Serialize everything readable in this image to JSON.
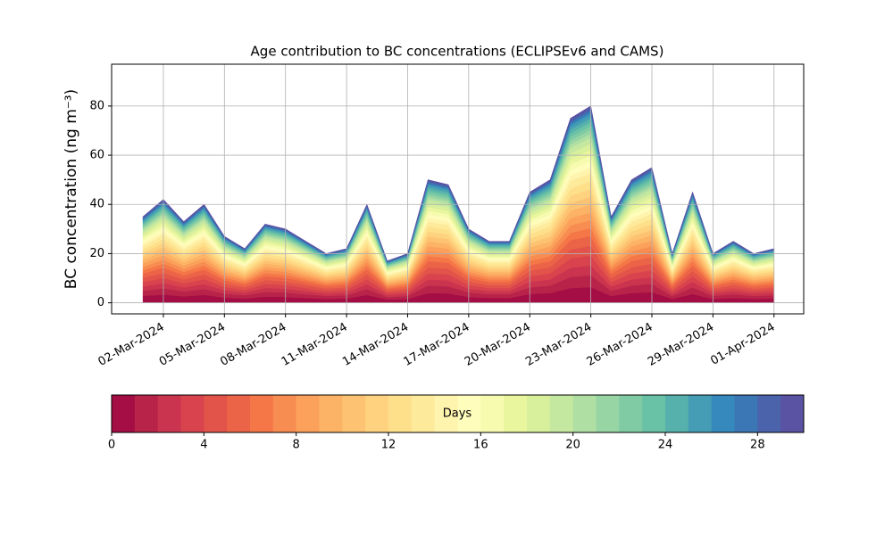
{
  "chart_data": {
    "type": "stacked_area",
    "title": "Age contribution to BC concentrations (ECLIPSEv6 and CAMS)",
    "y_label": "BC concentration (ng m⁻³)",
    "x": [
      "2024-03-01",
      "2024-03-02",
      "2024-03-03",
      "2024-03-04",
      "2024-03-05",
      "2024-03-06",
      "2024-03-07",
      "2024-03-08",
      "2024-03-09",
      "2024-03-10",
      "2024-03-11",
      "2024-03-12",
      "2024-03-13",
      "2024-03-14",
      "2024-03-15",
      "2024-03-16",
      "2024-03-17",
      "2024-03-18",
      "2024-03-19",
      "2024-03-20",
      "2024-03-21",
      "2024-03-22",
      "2024-03-23",
      "2024-03-24",
      "2024-03-25",
      "2024-03-26",
      "2024-03-27",
      "2024-03-28",
      "2024-03-29",
      "2024-03-30",
      "2024-03-31",
      "2024-04-01"
    ],
    "xlim": [
      "2024-02-28T11:00",
      "2024-04-02T11:00"
    ],
    "xticks": [
      {
        "value": "2024-03-02",
        "label": "02-Mar-2024"
      },
      {
        "value": "2024-03-05",
        "label": "05-Mar-2024"
      },
      {
        "value": "2024-03-08",
        "label": "08-Mar-2024"
      },
      {
        "value": "2024-03-11",
        "label": "11-Mar-2024"
      },
      {
        "value": "2024-03-14",
        "label": "14-Mar-2024"
      },
      {
        "value": "2024-03-17",
        "label": "17-Mar-2024"
      },
      {
        "value": "2024-03-20",
        "label": "20-Mar-2024"
      },
      {
        "value": "2024-03-23",
        "label": "23-Mar-2024"
      },
      {
        "value": "2024-03-26",
        "label": "26-Mar-2024"
      },
      {
        "value": "2024-03-29",
        "label": "29-Mar-2024"
      },
      {
        "value": "2024-04-01",
        "label": "01-Apr-2024"
      }
    ],
    "ylim": [
      -4.5,
      97
    ],
    "yticks": [
      0,
      20,
      40,
      60,
      80
    ],
    "grid": true,
    "series": [
      {
        "color": "#a50d45",
        "values": [
          2.8,
          3.36,
          2.64,
          3.2,
          2.16,
          1.76,
          2.56,
          2.4,
          2,
          1.6,
          1.76,
          3.2,
          1.36,
          1.6,
          4,
          3.84,
          2.4,
          2,
          2,
          3.6,
          4,
          6,
          6.4,
          2.8,
          4,
          4.4,
          1.6,
          3.6,
          1.6,
          2,
          1.6,
          1.76
        ]
      },
      {
        "color": "#b8234a",
        "values": [
          2.1,
          2.52,
          1.98,
          2.4,
          1.62,
          1.32,
          1.92,
          1.8,
          1.5,
          1.2,
          1.32,
          2.4,
          1.02,
          1.2,
          3,
          2.88,
          1.8,
          1.5,
          1.5,
          2.7,
          3,
          4.5,
          4.8,
          2.1,
          3,
          3.3,
          1.2,
          2.7,
          1.2,
          1.5,
          1.2,
          1.32
        ]
      },
      {
        "color": "#ca344e",
        "values": [
          1.75,
          2.1,
          1.65,
          2,
          1.35,
          1.1,
          1.6,
          1.5,
          1.25,
          1,
          1.1,
          2,
          0.85,
          1,
          2.5,
          2.4,
          1.5,
          1.25,
          1.25,
          2.25,
          2.5,
          3.75,
          4,
          1.75,
          2.5,
          2.75,
          1,
          2.25,
          1,
          1.25,
          1,
          1.1
        ]
      },
      {
        "color": "#d8434e",
        "values": [
          1.75,
          2.1,
          1.65,
          2,
          1.35,
          1.1,
          1.6,
          1.5,
          1.25,
          1,
          1.1,
          2,
          0.85,
          1,
          2.5,
          2.4,
          1.5,
          1.25,
          1.25,
          2.25,
          2.5,
          3.75,
          4,
          1.75,
          2.5,
          2.75,
          1,
          2.25,
          1,
          1.25,
          1,
          1.1
        ]
      },
      {
        "color": "#e2534a",
        "values": [
          1.75,
          2.1,
          1.65,
          2,
          1.35,
          1.1,
          1.6,
          1.5,
          1.25,
          1,
          1.1,
          2,
          0.85,
          1,
          2.5,
          2.4,
          1.5,
          1.25,
          1.25,
          2.25,
          2.5,
          3.75,
          4,
          1.75,
          2.5,
          2.75,
          1,
          2.25,
          1,
          1.25,
          1,
          1.1
        ]
      },
      {
        "color": "#ec6447",
        "values": [
          1.75,
          2.1,
          1.65,
          2,
          1.35,
          1.1,
          1.6,
          1.5,
          1.25,
          1,
          1.1,
          2,
          0.85,
          1,
          2.5,
          2.4,
          1.5,
          1.25,
          1.25,
          2.25,
          2.5,
          3.75,
          4,
          1.75,
          2.5,
          2.75,
          1,
          2.25,
          1,
          1.25,
          1,
          1.1
        ]
      },
      {
        "color": "#f57748",
        "values": [
          1.4,
          1.68,
          1.32,
          1.6,
          1.08,
          0.88,
          1.28,
          1.2,
          1,
          0.8,
          0.88,
          1.6,
          0.68,
          0.8,
          2,
          1.92,
          1.2,
          1,
          1,
          1.8,
          2,
          3,
          3.2,
          1.4,
          2,
          2.2,
          0.8,
          1.8,
          0.8,
          1,
          0.8,
          0.88
        ]
      },
      {
        "color": "#f88d52",
        "values": [
          1.4,
          1.68,
          1.32,
          1.6,
          1.08,
          0.88,
          1.28,
          1.2,
          1,
          0.8,
          0.88,
          1.6,
          0.68,
          0.8,
          2,
          1.92,
          1.2,
          1,
          1,
          1.8,
          2,
          3,
          3.2,
          1.4,
          2,
          2.2,
          0.8,
          1.8,
          0.8,
          1,
          0.8,
          0.88
        ]
      },
      {
        "color": "#fba15b",
        "values": [
          1.4,
          1.68,
          1.32,
          1.6,
          1.08,
          0.88,
          1.28,
          1.2,
          1,
          0.8,
          0.88,
          1.6,
          0.68,
          0.8,
          2,
          1.92,
          1.2,
          1,
          1,
          1.8,
          2,
          3,
          3.2,
          1.4,
          2,
          2.2,
          0.8,
          1.8,
          0.8,
          1,
          0.8,
          0.88
        ]
      },
      {
        "color": "#fdb365",
        "values": [
          1.4,
          1.68,
          1.32,
          1.6,
          1.08,
          0.88,
          1.28,
          1.2,
          1,
          0.8,
          0.88,
          1.6,
          0.68,
          0.8,
          2,
          1.92,
          1.2,
          1,
          1,
          1.8,
          2,
          3,
          3.2,
          1.4,
          2,
          2.2,
          0.8,
          1.8,
          0.8,
          1,
          0.8,
          0.88
        ]
      },
      {
        "color": "#fdc372",
        "values": [
          1.4,
          1.68,
          1.32,
          1.6,
          1.08,
          0.88,
          1.28,
          1.2,
          1,
          0.8,
          0.88,
          1.6,
          0.68,
          0.8,
          2,
          1.92,
          1.2,
          1,
          1,
          1.8,
          2,
          3,
          3.2,
          1.4,
          2,
          2.2,
          0.8,
          1.8,
          0.8,
          1,
          0.8,
          0.88
        ]
      },
      {
        "color": "#fed27f",
        "values": [
          1.4,
          1.68,
          1.32,
          1.6,
          1.08,
          0.88,
          1.28,
          1.2,
          1,
          0.8,
          0.88,
          1.6,
          0.68,
          0.8,
          2,
          1.92,
          1.2,
          1,
          1,
          1.8,
          2,
          3,
          3.2,
          1.4,
          2,
          2.2,
          0.8,
          1.8,
          0.8,
          1,
          0.8,
          0.88
        ]
      },
      {
        "color": "#fee08b",
        "values": [
          1.4,
          1.68,
          1.32,
          1.6,
          1.08,
          0.88,
          1.28,
          1.2,
          1,
          0.8,
          0.88,
          1.6,
          0.68,
          0.8,
          2,
          1.92,
          1.2,
          1,
          1,
          1.8,
          2,
          3,
          3.2,
          1.4,
          2,
          2.2,
          0.8,
          1.8,
          0.8,
          1,
          0.8,
          0.88
        ]
      },
      {
        "color": "#feea9b",
        "values": [
          1.4,
          1.68,
          1.32,
          1.6,
          1.08,
          0.88,
          1.28,
          1.2,
          1,
          0.8,
          0.88,
          1.6,
          0.68,
          0.8,
          2,
          1.92,
          1.2,
          1,
          1,
          1.8,
          2,
          3,
          3.2,
          1.4,
          2,
          2.2,
          0.8,
          1.8,
          0.8,
          1,
          0.8,
          0.88
        ]
      },
      {
        "color": "#fff4ae",
        "values": [
          1.05,
          1.26,
          0.99,
          1.2,
          0.81,
          0.66,
          0.96,
          0.9,
          0.75,
          0.6,
          0.66,
          1.2,
          0.51,
          0.6,
          1.5,
          1.44,
          0.9,
          0.75,
          0.75,
          1.35,
          1.5,
          2.25,
          2.4,
          1.05,
          1.5,
          1.65,
          0.6,
          1.35,
          0.6,
          0.75,
          0.6,
          0.66
        ]
      },
      {
        "color": "#fffdbc",
        "values": [
          1.05,
          1.26,
          0.99,
          1.2,
          0.81,
          0.66,
          0.96,
          0.9,
          0.75,
          0.6,
          0.66,
          1.2,
          0.51,
          0.6,
          1.5,
          1.44,
          0.9,
          0.75,
          0.75,
          1.35,
          1.5,
          2.25,
          2.4,
          1.05,
          1.5,
          1.65,
          0.6,
          1.35,
          0.6,
          0.75,
          0.6,
          0.66
        ]
      },
      {
        "color": "#f6fbb0",
        "values": [
          1.05,
          1.26,
          0.99,
          1.2,
          0.81,
          0.66,
          0.96,
          0.9,
          0.75,
          0.6,
          0.66,
          1.2,
          0.51,
          0.6,
          1.5,
          1.44,
          0.9,
          0.75,
          0.75,
          1.35,
          1.5,
          2.25,
          2.4,
          1.05,
          1.5,
          1.65,
          0.6,
          1.35,
          0.6,
          0.75,
          0.6,
          0.66
        ]
      },
      {
        "color": "#e9f69d",
        "values": [
          1.05,
          1.26,
          0.99,
          1.2,
          0.81,
          0.66,
          0.96,
          0.9,
          0.75,
          0.6,
          0.66,
          1.2,
          0.51,
          0.6,
          1.5,
          1.44,
          0.9,
          0.75,
          0.75,
          1.35,
          1.5,
          2.25,
          2.4,
          1.05,
          1.5,
          1.65,
          0.6,
          1.35,
          0.6,
          0.75,
          0.6,
          0.66
        ]
      },
      {
        "color": "#d8ef9b",
        "values": [
          1.05,
          1.26,
          0.99,
          1.2,
          0.81,
          0.66,
          0.96,
          0.9,
          0.75,
          0.6,
          0.66,
          1.2,
          0.51,
          0.6,
          1.5,
          1.44,
          0.9,
          0.75,
          0.75,
          1.35,
          1.5,
          2.25,
          2.4,
          1.05,
          1.5,
          1.65,
          0.6,
          1.35,
          0.6,
          0.75,
          0.6,
          0.66
        ]
      },
      {
        "color": "#c5e8a0",
        "values": [
          1.05,
          1.26,
          0.99,
          1.2,
          0.81,
          0.66,
          0.96,
          0.9,
          0.75,
          0.6,
          0.66,
          1.2,
          0.51,
          0.6,
          1.5,
          1.44,
          0.9,
          0.75,
          0.75,
          1.35,
          1.5,
          2.25,
          2.4,
          1.05,
          1.5,
          1.65,
          0.6,
          1.35,
          0.6,
          0.75,
          0.6,
          0.66
        ]
      },
      {
        "color": "#b0dfa3",
        "values": [
          0.7,
          0.84,
          0.66,
          0.8,
          0.54,
          0.44,
          0.64,
          0.6,
          0.5,
          0.4,
          0.44,
          0.8,
          0.34,
          0.4,
          1,
          0.96,
          0.6,
          0.5,
          0.5,
          0.9,
          1,
          1.5,
          1.6,
          0.7,
          1,
          1.1,
          0.4,
          0.9,
          0.4,
          0.5,
          0.4,
          0.44
        ]
      },
      {
        "color": "#98d5a4",
        "values": [
          0.7,
          0.84,
          0.66,
          0.8,
          0.54,
          0.44,
          0.64,
          0.6,
          0.5,
          0.4,
          0.44,
          0.8,
          0.34,
          0.4,
          1,
          0.96,
          0.6,
          0.5,
          0.5,
          0.9,
          1,
          1.5,
          1.6,
          0.7,
          1,
          1.1,
          0.4,
          0.9,
          0.4,
          0.5,
          0.4,
          0.44
        ]
      },
      {
        "color": "#80cba4",
        "values": [
          0.7,
          0.84,
          0.66,
          0.8,
          0.54,
          0.44,
          0.64,
          0.6,
          0.5,
          0.4,
          0.44,
          0.8,
          0.34,
          0.4,
          1,
          0.96,
          0.6,
          0.5,
          0.5,
          0.9,
          1,
          1.5,
          1.6,
          0.7,
          1,
          1.1,
          0.4,
          0.9,
          0.4,
          0.5,
          0.4,
          0.44
        ]
      },
      {
        "color": "#69c2a5",
        "values": [
          0.7,
          0.84,
          0.66,
          0.8,
          0.54,
          0.44,
          0.64,
          0.6,
          0.5,
          0.4,
          0.44,
          0.8,
          0.34,
          0.4,
          1,
          0.96,
          0.6,
          0.5,
          0.5,
          0.9,
          1,
          1.5,
          1.6,
          0.7,
          1,
          1.1,
          0.4,
          0.9,
          0.4,
          0.5,
          0.4,
          0.44
        ]
      },
      {
        "color": "#56b0ac",
        "values": [
          0.7,
          0.84,
          0.66,
          0.8,
          0.54,
          0.44,
          0.64,
          0.6,
          0.5,
          0.4,
          0.44,
          0.8,
          0.34,
          0.4,
          1,
          0.96,
          0.6,
          0.5,
          0.5,
          0.9,
          1,
          1.5,
          1.6,
          0.7,
          1,
          1.1,
          0.4,
          0.9,
          0.4,
          0.5,
          0.4,
          0.44
        ]
      },
      {
        "color": "#449db4",
        "values": [
          0.7,
          0.84,
          0.66,
          0.8,
          0.54,
          0.44,
          0.64,
          0.6,
          0.5,
          0.4,
          0.44,
          0.8,
          0.34,
          0.4,
          1,
          0.96,
          0.6,
          0.5,
          0.5,
          0.9,
          1,
          1.5,
          1.6,
          0.7,
          1,
          1.1,
          0.4,
          0.9,
          0.4,
          0.5,
          0.4,
          0.44
        ]
      },
      {
        "color": "#3689bc",
        "values": [
          0.35,
          0.42,
          0.33,
          0.4,
          0.27,
          0.22,
          0.32,
          0.3,
          0.25,
          0.2,
          0.22,
          0.4,
          0.17,
          0.2,
          0.5,
          0.48,
          0.3,
          0.25,
          0.25,
          0.45,
          0.5,
          0.75,
          0.8,
          0.35,
          0.5,
          0.55,
          0.2,
          0.45,
          0.2,
          0.25,
          0.2,
          0.22
        ]
      },
      {
        "color": "#3b76b5",
        "values": [
          0.35,
          0.42,
          0.33,
          0.4,
          0.27,
          0.22,
          0.32,
          0.3,
          0.25,
          0.2,
          0.22,
          0.4,
          0.17,
          0.2,
          0.5,
          0.48,
          0.3,
          0.25,
          0.25,
          0.45,
          0.5,
          0.75,
          0.8,
          0.35,
          0.5,
          0.55,
          0.2,
          0.45,
          0.2,
          0.25,
          0.2,
          0.22
        ]
      },
      {
        "color": "#4a63ab",
        "values": [
          0.35,
          0.42,
          0.33,
          0.4,
          0.27,
          0.22,
          0.32,
          0.3,
          0.25,
          0.2,
          0.22,
          0.4,
          0.17,
          0.2,
          0.5,
          0.48,
          0.3,
          0.25,
          0.25,
          0.45,
          0.5,
          0.75,
          0.8,
          0.35,
          0.5,
          0.55,
          0.2,
          0.45,
          0.2,
          0.25,
          0.2,
          0.22
        ]
      },
      {
        "color": "#5a52a3",
        "values": [
          0.35,
          0.42,
          0.33,
          0.4,
          0.27,
          0.22,
          0.32,
          0.3,
          0.25,
          0.2,
          0.22,
          0.4,
          0.17,
          0.2,
          0.5,
          0.48,
          0.3,
          0.25,
          0.25,
          0.45,
          0.5,
          0.75,
          0.8,
          0.35,
          0.5,
          0.55,
          0.2,
          0.45,
          0.2,
          0.25,
          0.2,
          0.22
        ]
      }
    ],
    "colorbar": {
      "label": "Days",
      "lim": [
        0,
        30
      ],
      "ticks": [
        0,
        4,
        8,
        12,
        16,
        20,
        24,
        28
      ]
    }
  }
}
